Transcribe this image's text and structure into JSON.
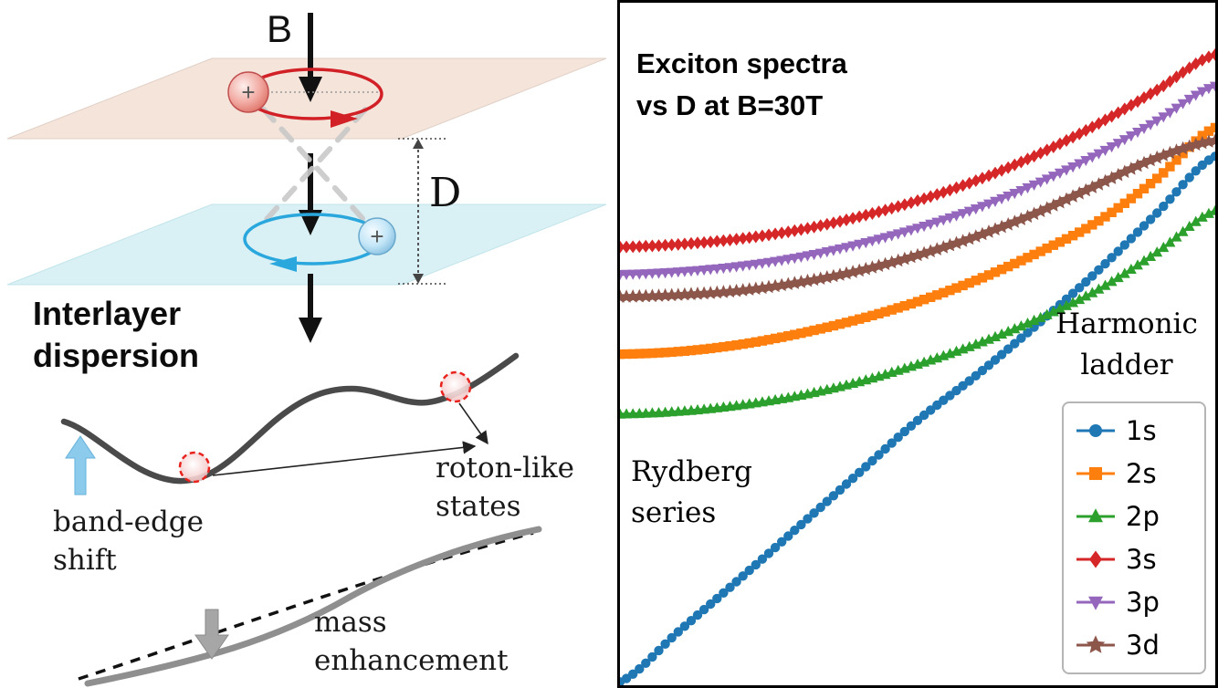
{
  "diagram": {
    "b_label": "B",
    "d_label": "D",
    "plus": "+",
    "title_lines": [
      "Interlayer",
      "dispersion"
    ],
    "band_edge_lines": [
      "band-edge",
      "shift"
    ],
    "roton_lines": [
      "roton-like",
      "states"
    ],
    "mass_lines": [
      "mass",
      "enhancement"
    ],
    "colors": {
      "top_plane": "#f5e4da",
      "bottom_plane": "#d9f1f5",
      "top_orbit": "#d22027",
      "bottom_orbit": "#2aa7dc",
      "band_edge_arrow": "#8ccbeb"
    }
  },
  "chart_data": {
    "type": "line",
    "title": "Exciton spectra vs D at B=30T",
    "title_lines": [
      "Exciton spectra",
      "vs D at B=30T"
    ],
    "annotations": [
      {
        "id": "harmonic-ladder",
        "lines": [
          "Harmonic",
          "ladder"
        ],
        "position": "right-middle"
      },
      {
        "id": "rydberg-series",
        "lines": [
          "Rydberg",
          "series"
        ],
        "position": "left-lower"
      }
    ],
    "xlabel": "",
    "ylabel": "",
    "axes_visible": false,
    "legend_position": "lower right",
    "xlim_normalized": [
      0,
      1
    ],
    "ylim_normalized": [
      0,
      1
    ],
    "x_normalized": [
      0,
      0.1,
      0.2,
      0.3,
      0.4,
      0.5,
      0.6,
      0.7,
      0.8,
      0.9,
      1.0
    ],
    "series": [
      {
        "id": "1s",
        "label": "1s",
        "color": "#1f77b4",
        "marker": "circle",
        "values": [
          0.005,
          0.08,
          0.155,
          0.232,
          0.31,
          0.388,
          0.455,
          0.528,
          0.605,
          0.69,
          0.775
        ]
      },
      {
        "id": "2s",
        "label": "2s",
        "color": "#ff7f0e",
        "marker": "square",
        "values": [
          0.485,
          0.489,
          0.499,
          0.515,
          0.536,
          0.562,
          0.594,
          0.633,
          0.678,
          0.741,
          0.817
        ]
      },
      {
        "id": "2p",
        "label": "2p",
        "color": "#2ca02c",
        "marker": "triangle-up",
        "values": [
          0.397,
          0.401,
          0.41,
          0.424,
          0.444,
          0.47,
          0.5,
          0.536,
          0.578,
          0.633,
          0.695
        ]
      },
      {
        "id": "3s",
        "label": "3s",
        "color": "#d62728",
        "marker": "diamond",
        "values": [
          0.642,
          0.646,
          0.654,
          0.667,
          0.686,
          0.71,
          0.74,
          0.777,
          0.821,
          0.871,
          0.924
        ]
      },
      {
        "id": "3p",
        "label": "3p",
        "color": "#9467bd",
        "marker": "triangle-down",
        "values": [
          0.602,
          0.606,
          0.614,
          0.627,
          0.646,
          0.67,
          0.699,
          0.735,
          0.777,
          0.826,
          0.878
        ]
      },
      {
        "id": "3d",
        "label": "3d",
        "color": "#8c564b",
        "marker": "star",
        "values": [
          0.569,
          0.572,
          0.578,
          0.59,
          0.607,
          0.63,
          0.658,
          0.692,
          0.732,
          0.772,
          0.798
        ]
      }
    ]
  }
}
